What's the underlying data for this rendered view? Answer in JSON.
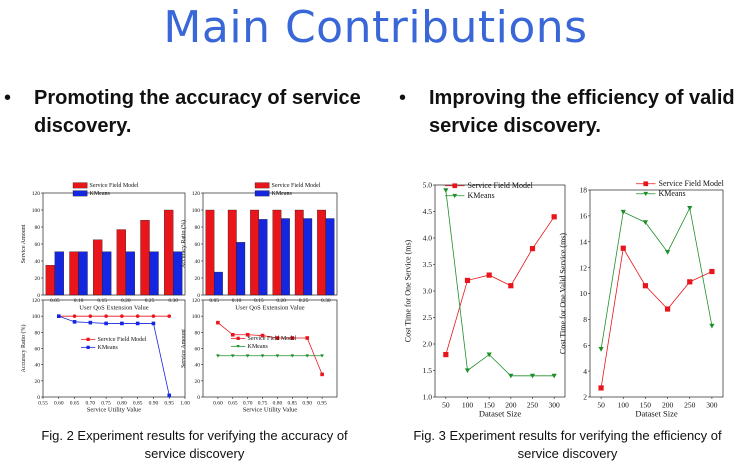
{
  "slide": {
    "title": "Main Contributions",
    "bullet_glyph": "•",
    "bullet_left_1": "Promoting the accuracy of service",
    "bullet_left_2": "discovery.",
    "bullet_right_1": "Improving the efficiency of valid",
    "bullet_right_2": "service discovery.",
    "caption_left_1": "Fig. 2 Experiment results for verifying the accuracy of",
    "caption_left_2": "service discovery",
    "caption_right_1": "Fig. 3 Experiment results for verifying the efficiency of",
    "caption_right_2": "service discovery"
  },
  "colors": {
    "red": "#e8151b",
    "blue": "#1526e0",
    "green": "#1f8f2a",
    "title": "#3a67d8"
  },
  "chart_data": [
    {
      "id": "a",
      "type": "bar",
      "categories": [
        "0.05",
        "0.10",
        "0.15",
        "0.20",
        "0.25",
        "0.30"
      ],
      "series": [
        {
          "name": "Service Field Model",
          "values": [
            35,
            51,
            65,
            77,
            88,
            100
          ]
        },
        {
          "name": "KMeans",
          "values": [
            51,
            51,
            51,
            51,
            51,
            51
          ]
        }
      ],
      "xlabel": "User QoS Extension Value",
      "ylabel": "Service Amount",
      "ylim": [
        0,
        120
      ],
      "yticks": [
        "0",
        "20",
        "40",
        "60",
        "80",
        "100",
        "120"
      ]
    },
    {
      "id": "b",
      "type": "bar",
      "categories": [
        "0.05",
        "0.10",
        "0.15",
        "0.20",
        "0.25",
        "0.30"
      ],
      "series": [
        {
          "name": "Service Field Model",
          "values": [
            100,
            100,
            100,
            100,
            100,
            100
          ]
        },
        {
          "name": "KMeans",
          "values": [
            27,
            62,
            89,
            90,
            90,
            90
          ]
        }
      ],
      "xlabel": "User QoS Extension Value",
      "ylabel": "Accuracy Ratio (%)",
      "ylim": [
        0,
        120
      ],
      "yticks": [
        "0",
        "20",
        "40",
        "60",
        "80",
        "100",
        "120"
      ]
    },
    {
      "id": "c",
      "type": "line",
      "x": [
        0.6,
        0.65,
        0.7,
        0.75,
        0.8,
        0.85,
        0.9,
        0.95
      ],
      "series": [
        {
          "name": "Service Field Model",
          "values": [
            100,
            100,
            100,
            100,
            100,
            100,
            100,
            100
          ]
        },
        {
          "name": "KMeans",
          "values": [
            100,
            93,
            92,
            91,
            91,
            91,
            91,
            2
          ]
        }
      ],
      "xlabel": "Service Utility Value",
      "ylabel": "Accuracy Ratio (%)",
      "xlim": [
        0.55,
        1.0
      ],
      "ylim": [
        0,
        120
      ],
      "xticks": [
        "0.55",
        "0.60",
        "0.65",
        "0.70",
        "0.75",
        "0.80",
        "0.85",
        "0.90",
        "0.95",
        "1.00"
      ],
      "yticks": [
        "0",
        "20",
        "40",
        "60",
        "80",
        "100",
        "120"
      ]
    },
    {
      "id": "d",
      "type": "line",
      "x": [
        0.6,
        0.65,
        0.7,
        0.75,
        0.8,
        0.85,
        0.9,
        0.95
      ],
      "series": [
        {
          "name": "Service Field Model",
          "values": [
            92,
            77,
            77,
            76,
            73,
            73,
            73,
            28
          ]
        },
        {
          "name": "KMeans",
          "values": [
            51,
            51,
            51,
            51,
            51,
            51,
            51,
            51
          ]
        }
      ],
      "xlabel": "Service Utility Value",
      "ylabel": "Service Amount",
      "xlim": [
        0.55,
        1.0
      ],
      "ylim": [
        0,
        120
      ],
      "xticks": [
        "0.60",
        "0.65",
        "0.70",
        "0.75",
        "0.80",
        "0.85",
        "0.90",
        "0.95"
      ],
      "yticks": [
        "0",
        "20",
        "40",
        "60",
        "80",
        "100",
        "120"
      ]
    },
    {
      "id": "e",
      "type": "line",
      "x": [
        50,
        100,
        150,
        200,
        250,
        300
      ],
      "series": [
        {
          "name": "Service Field Model",
          "values": [
            1.8,
            3.2,
            3.3,
            3.1,
            3.8,
            4.4
          ]
        },
        {
          "name": "KMeans",
          "values": [
            4.9,
            1.5,
            1.8,
            1.4,
            1.4,
            1.4
          ]
        }
      ],
      "xlabel": "Dataset Size",
      "ylabel": "Cost Time for One Service (ms)",
      "xlim": [
        25,
        325
      ],
      "ylim": [
        1.0,
        5.0
      ],
      "xticks": [
        "50",
        "100",
        "150",
        "200",
        "250",
        "300"
      ],
      "yticks": [
        "1.0",
        "1.5",
        "2.0",
        "2.5",
        "3.0",
        "3.5",
        "4.0",
        "4.5",
        "5.0"
      ]
    },
    {
      "id": "f",
      "type": "line",
      "x": [
        50,
        100,
        150,
        200,
        250,
        300
      ],
      "series": [
        {
          "name": "Service Field Model",
          "values": [
            2.7,
            13.5,
            10.6,
            8.8,
            10.9,
            11.7
          ]
        },
        {
          "name": "KMeans",
          "values": [
            5.7,
            16.3,
            15.5,
            13.2,
            16.6,
            7.5
          ]
        }
      ],
      "xlabel": "Dataset Size",
      "ylabel": "Cost Time for One Valid Service (ms)",
      "xlim": [
        25,
        325
      ],
      "ylim": [
        2,
        18
      ],
      "xticks": [
        "50",
        "100",
        "150",
        "200",
        "250",
        "300"
      ],
      "yticks": [
        "2",
        "4",
        "6",
        "8",
        "10",
        "12",
        "14",
        "16",
        "18"
      ]
    }
  ]
}
